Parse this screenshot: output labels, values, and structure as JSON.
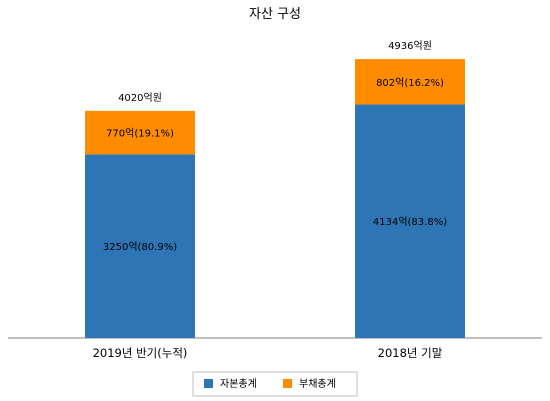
{
  "chart_data": {
    "type": "bar",
    "stacked": true,
    "title": "자산 구성",
    "categories": [
      "2019년 반기(누적)",
      "2018년 기말"
    ],
    "totals": [
      4020,
      4936
    ],
    "total_labels": [
      "4020억원",
      "4936억원"
    ],
    "series": [
      {
        "name": "자본총계",
        "color": "#2E75B6",
        "values": [
          3250,
          4134
        ],
        "labels": [
          "3250억(80.9%)",
          "4134억(83.8%)"
        ]
      },
      {
        "name": "부채총계",
        "color": "#FF8C00",
        "values": [
          770,
          802
        ],
        "labels": [
          "770억(19.1%)",
          "802억(16.2%)"
        ]
      }
    ],
    "ylim": [
      0,
      5600
    ],
    "grid": false,
    "legend_position": "bottom"
  }
}
